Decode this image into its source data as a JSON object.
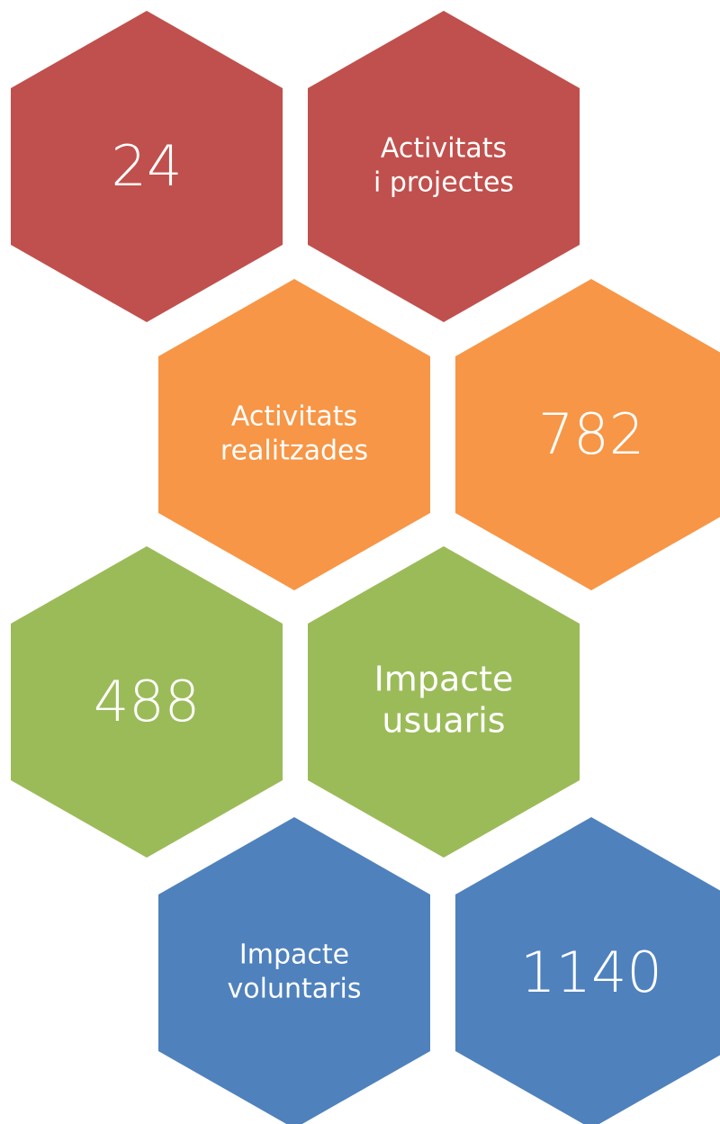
{
  "rows": [
    {
      "color": "#C0504D",
      "number_side": "left",
      "number": 24,
      "label": [
        "Activitats",
        "i projectes"
      ]
    },
    {
      "color": "#F79646",
      "number_side": "right",
      "number": 782,
      "label": [
        "Activitats",
        "realitzades"
      ]
    },
    {
      "color": "#9BBB59",
      "number_side": "left",
      "number": 488,
      "label": [
        "Impacte",
        "usuaris"
      ]
    },
    {
      "color": "#4F81BD",
      "number_side": "right",
      "number": 1140,
      "label": [
        "Impacte",
        "voluntaris"
      ]
    }
  ]
}
